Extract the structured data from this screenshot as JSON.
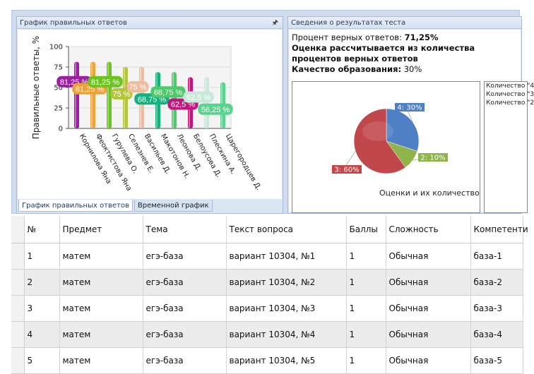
{
  "left_panel": {
    "title": "График правильных ответов",
    "pin_icon": "pin-icon",
    "tabs": [
      "График правильных ответов",
      "Временной график"
    ]
  },
  "right_panel": {
    "title": "Сведения о результатах теста",
    "percent_label": "Процент верных ответов:",
    "percent_value": "71,25%",
    "grading_note": "Оценка рассчитывается из количества процентов верных ответов",
    "quality_label": "Качество образования:",
    "quality_value": "30%",
    "pie_caption": "Оценки и их количество",
    "legend": [
      "Количество \"4",
      "Количество \"3",
      "Количество \"2"
    ]
  },
  "chart_data": [
    {
      "type": "bar",
      "title": "",
      "xlabel": "",
      "ylabel": "Правильные ответы, %",
      "ylim": [
        0,
        100
      ],
      "yticks": [
        0,
        25,
        50,
        75,
        100
      ],
      "categories": [
        "Корнилова Яна",
        "Феоктистова Яна",
        "Гурулева О.",
        "Селезнев Е.",
        "Васильев Д.",
        "Макотонов Н.",
        "Леонова Д.",
        "Белоусова Д.",
        "Плескина А.",
        "Царегородцев Д."
      ],
      "values": [
        81.25,
        81.25,
        81.25,
        75,
        75,
        68.75,
        68.75,
        62.5,
        62.5,
        56.25
      ],
      "data_labels": [
        "81,25 %",
        "81,25 %",
        "81,25 %",
        "75 %",
        "75 %",
        "68,75 %",
        "68,75 %",
        "62,5 %",
        "62,5 %",
        "56,25 %"
      ],
      "colors": [
        "#9b1f9e",
        "#eda238",
        "#6bc420",
        "#b6c43a",
        "#eebd9c",
        "#13b17d",
        "#52c86c",
        "#c2167f",
        "#c8e8d8",
        "#59d48e"
      ],
      "grid": true,
      "legend": "none"
    },
    {
      "type": "pie",
      "title": "Оценки и их количество",
      "labels": [
        "4: 30%",
        "2: 10%",
        "3: 60%"
      ],
      "values": [
        30,
        10,
        60
      ],
      "colors": [
        "#4f7fc4",
        "#8fb44a",
        "#c0474a"
      ]
    }
  ],
  "table": {
    "headers": [
      "№",
      "Предмет",
      "Тема",
      "Текст вопроса",
      "Баллы",
      "Сложность",
      "Компетенти"
    ],
    "rows": [
      [
        "1",
        "матем",
        "егэ-база",
        "вариант 10304, №1",
        "1",
        "Обычная",
        "база-1"
      ],
      [
        "2",
        "матем",
        "егэ-база",
        "вариант 10304, №2",
        "1",
        "Обычная",
        "база-2"
      ],
      [
        "3",
        "матем",
        "егэ-база",
        "вариант 10304, №3",
        "1",
        "Обычная",
        "база-3"
      ],
      [
        "4",
        "матем",
        "егэ-база",
        "вариант 10304, №4",
        "1",
        "Обычная",
        "база-4"
      ],
      [
        "5",
        "матем",
        "егэ-база",
        "вариант 10304, №5",
        "1",
        "Обычная",
        "база-5"
      ]
    ]
  }
}
